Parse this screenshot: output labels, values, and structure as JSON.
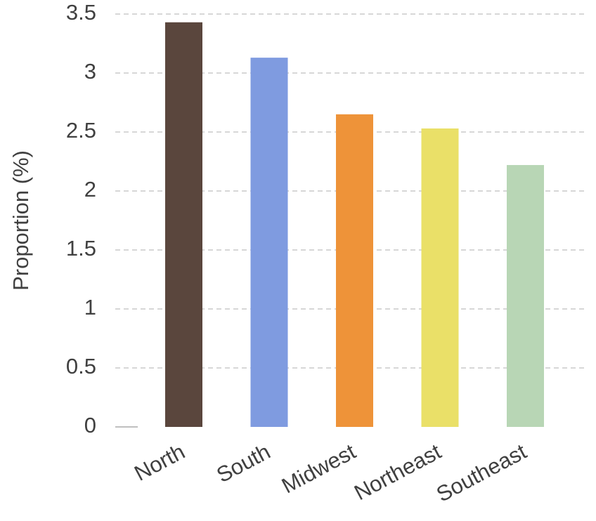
{
  "chart_data": {
    "type": "bar",
    "title": "",
    "xlabel": "",
    "ylabel": "Proportion (%)",
    "ylim": [
      0,
      3.5
    ],
    "yticks": [
      "0",
      "0.5",
      "1",
      "1.5",
      "2",
      "2.5",
      "3",
      "3.5"
    ],
    "grid": true,
    "categories": [
      "North",
      "South",
      "Midwest",
      "Northeast",
      "Southeast"
    ],
    "values": [
      3.43,
      3.13,
      2.65,
      2.53,
      2.22
    ],
    "colors": [
      "#5a463d",
      "#7f9be0",
      "#ee9339",
      "#eae068",
      "#b8d6b5"
    ],
    "grid_color": "#bfbfbf",
    "text_color": "#404040"
  }
}
